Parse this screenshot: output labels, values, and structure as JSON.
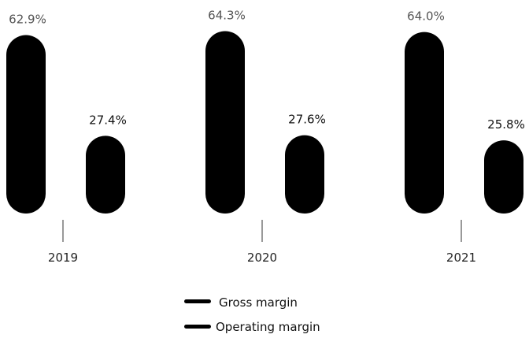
{
  "chart_data": {
    "type": "bar",
    "categories": [
      "2019",
      "2020",
      "2021"
    ],
    "series": [
      {
        "name": "Gross margin",
        "values": [
          62.9,
          64.3,
          64.0
        ],
        "labels": [
          "62.9%",
          "64.3%",
          "64.0%"
        ],
        "color": "#000000",
        "label_color": "#555555"
      },
      {
        "name": "Operating margin",
        "values": [
          27.4,
          27.6,
          25.8
        ],
        "labels": [
          "27.4%",
          "27.6%",
          "25.8%"
        ],
        "color": "#000000",
        "label_color": "#111111"
      }
    ],
    "legend_position": "bottom-center",
    "grid": false
  }
}
